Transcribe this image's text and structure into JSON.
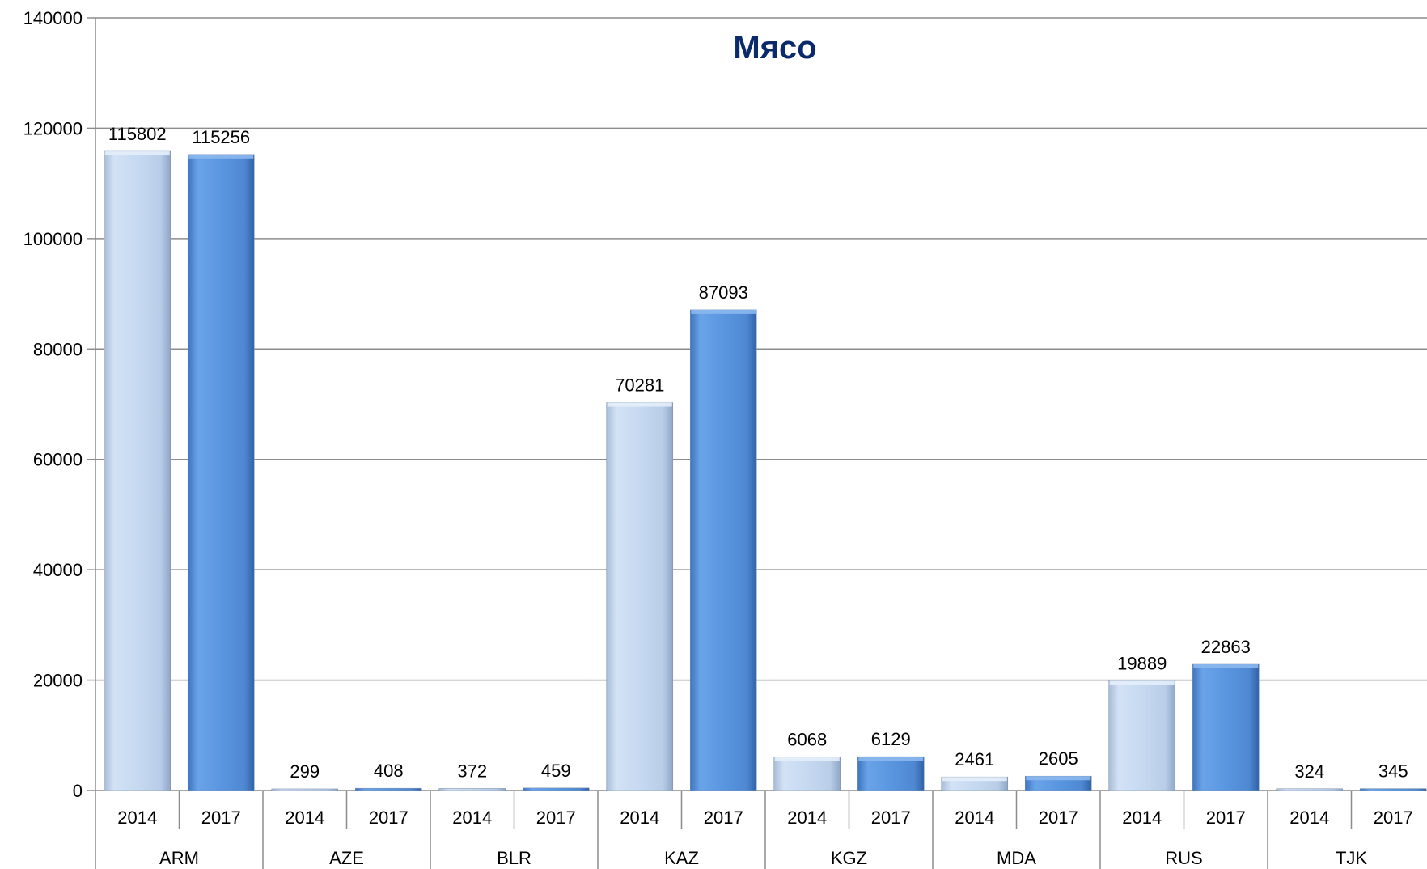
{
  "chart_data": {
    "type": "bar",
    "title": "Мясо",
    "xlabel": "",
    "ylabel": "",
    "ylim": [
      0,
      140000
    ],
    "yticks": [
      0,
      20000,
      40000,
      60000,
      80000,
      100000,
      120000,
      140000
    ],
    "grid": true,
    "legend": "none",
    "categories": [
      "ARM",
      "AZE",
      "BLR",
      "KAZ",
      "KGZ",
      "MDA",
      "RUS",
      "TJK"
    ],
    "subcategories": [
      "2014",
      "2017"
    ],
    "series": [
      {
        "values": [
          115802,
          299,
          372,
          70281,
          6068,
          2461,
          19889,
          324
        ],
        "color": "#c6d9f1"
      },
      {
        "values": [
          115256,
          408,
          459,
          87093,
          6129,
          2605,
          22863,
          345
        ],
        "color": "#5a96e0"
      }
    ]
  }
}
